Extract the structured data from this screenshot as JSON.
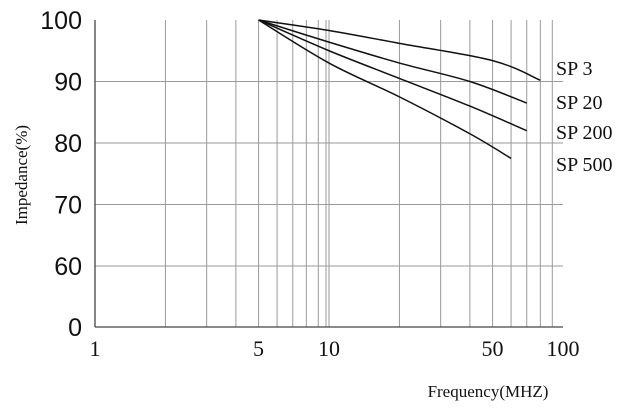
{
  "chart_data": {
    "type": "line",
    "xlabel": "Frequency(MHZ)",
    "ylabel": "Impedance(%)",
    "x_scale": "log",
    "xlim": [
      1,
      100
    ],
    "ylim": [
      0,
      100
    ],
    "x_tick_labels": [
      "1",
      "5",
      "10",
      "50",
      "100"
    ],
    "y_tick_labels": [
      "0",
      "60",
      "70",
      "80",
      "90",
      "100"
    ],
    "grid": true,
    "series": [
      {
        "name": "SP 3",
        "points": [
          [
            5,
            100
          ],
          [
            10,
            98.3
          ],
          [
            20,
            96.2
          ],
          [
            50,
            93.4
          ],
          [
            80,
            90.2
          ]
        ]
      },
      {
        "name": "SP 20",
        "points": [
          [
            5,
            100
          ],
          [
            10,
            96.4
          ],
          [
            20,
            93.0
          ],
          [
            40,
            90.0
          ],
          [
            70,
            86.5
          ]
        ]
      },
      {
        "name": "SP 200",
        "points": [
          [
            5,
            100
          ],
          [
            10,
            95.0
          ],
          [
            20,
            90.5
          ],
          [
            40,
            86.0
          ],
          [
            70,
            82.0
          ]
        ]
      },
      {
        "name": "SP 500",
        "points": [
          [
            5,
            100
          ],
          [
            10,
            93.0
          ],
          [
            20,
            87.5
          ],
          [
            40,
            81.5
          ],
          [
            60,
            77.5
          ]
        ]
      }
    ]
  }
}
